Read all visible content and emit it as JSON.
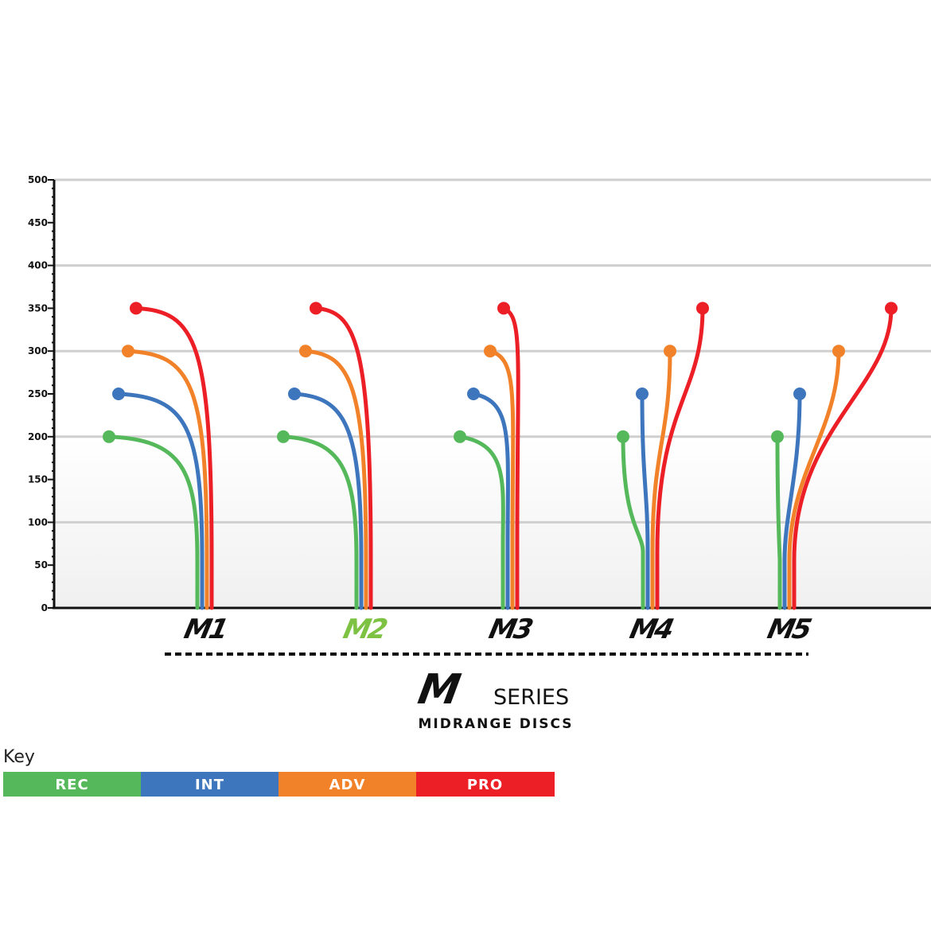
{
  "chart_data": {
    "type": "line",
    "ylim": [
      0,
      500
    ],
    "ytick_step": 50,
    "grid": true,
    "categories": [
      "M1",
      "M2",
      "M3",
      "M4",
      "M5"
    ],
    "highlight_category": "M2",
    "series": [
      {
        "name": "REC",
        "color": "#55b95c",
        "values": [
          200,
          200,
          200,
          200,
          200
        ]
      },
      {
        "name": "INT",
        "color": "#3e76bd",
        "values": [
          250,
          250,
          250,
          250,
          250
        ]
      },
      {
        "name": "ADV",
        "color": "#f2822a",
        "values": [
          300,
          300,
          300,
          300,
          300
        ]
      },
      {
        "name": "PRO",
        "color": "#ec1f26",
        "values": [
          350,
          350,
          350,
          350,
          350
        ]
      }
    ],
    "title_mark": "M",
    "title_word": "SERIES",
    "subtitle": "MIDRANGE DISCS"
  },
  "colors": {
    "axis": "#111111",
    "grid": "#cfcfcf",
    "highlight": "#7dc242",
    "label": "#111111"
  },
  "key": {
    "title": "Key",
    "items": [
      {
        "label": "REC",
        "color": "#55b95c"
      },
      {
        "label": "INT",
        "color": "#3e76bd"
      },
      {
        "label": "ADV",
        "color": "#f2822a"
      },
      {
        "label": "PRO",
        "color": "#ec1f26"
      }
    ]
  }
}
